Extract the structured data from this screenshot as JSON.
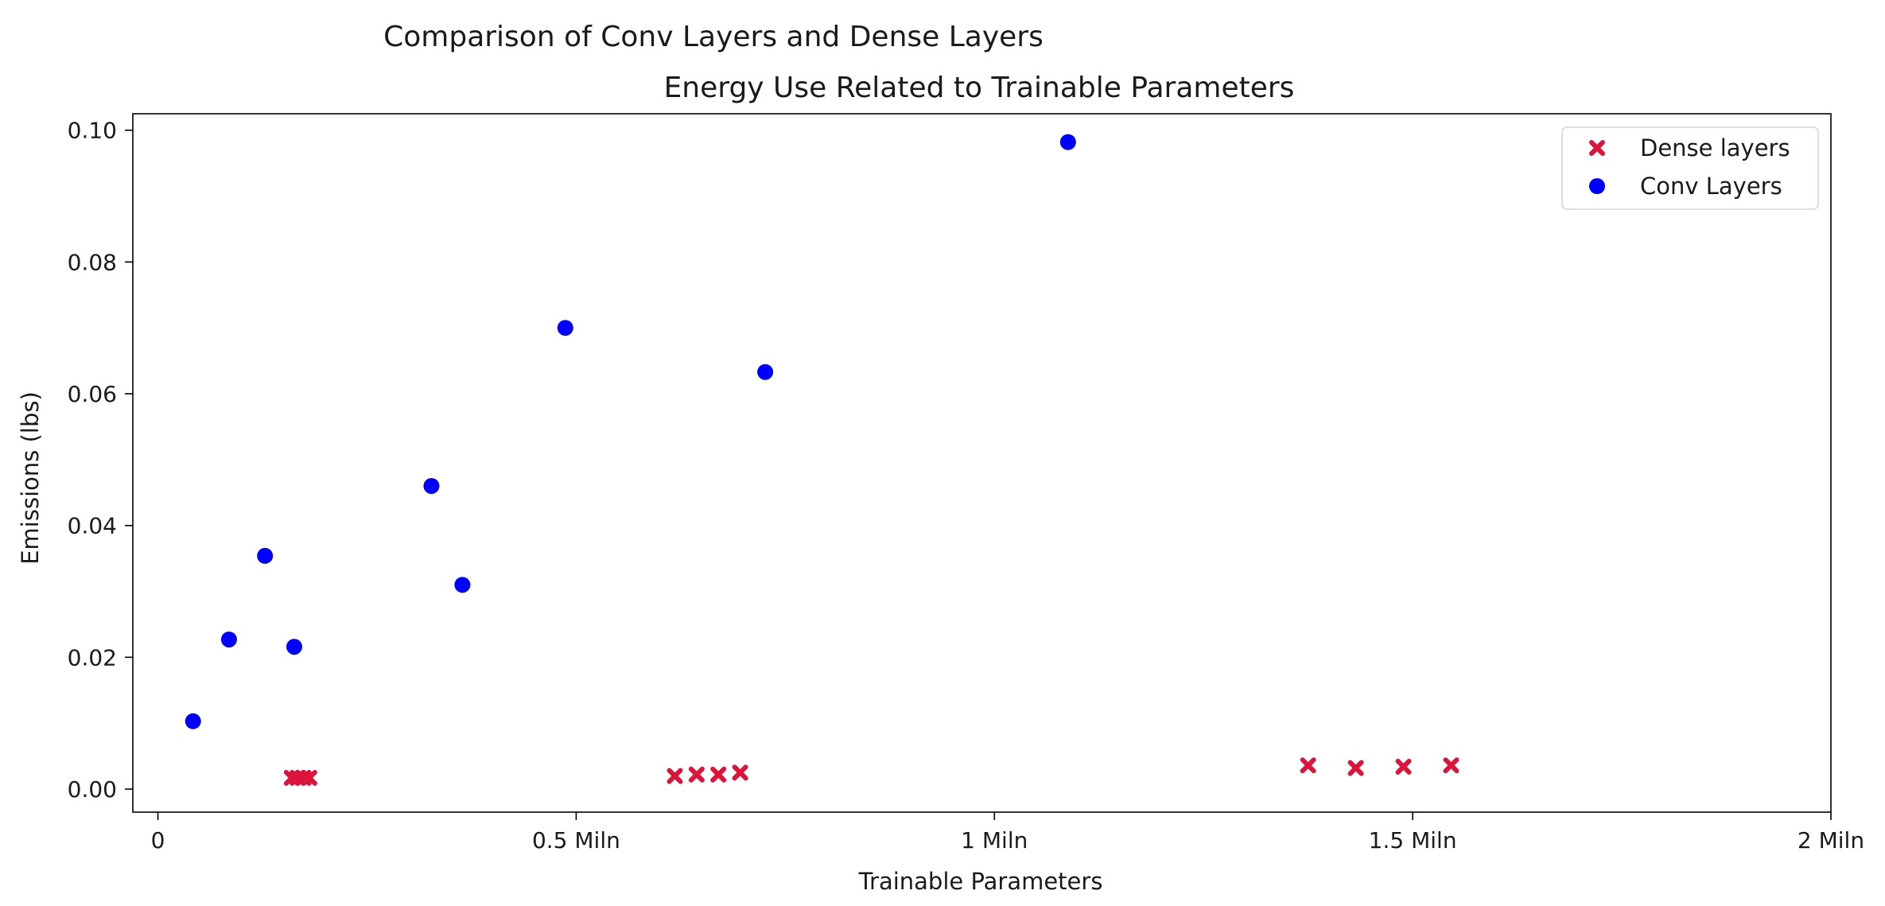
{
  "chart_data": {
    "type": "scatter",
    "title": "Comparison of Conv Layers and Dense Layers",
    "subtitle": "Energy Use Related to Trainable Parameters",
    "xlabel": "Trainable Parameters",
    "ylabel": "Emissions (lbs)",
    "xlim": [
      -30000,
      2000000
    ],
    "ylim": [
      -0.0035,
      0.1025
    ],
    "x_ticks": [
      {
        "value": 0,
        "label": "0"
      },
      {
        "value": 500000,
        "label": "0.5 Miln"
      },
      {
        "value": 1000000,
        "label": "1 Miln"
      },
      {
        "value": 1500000,
        "label": "1.5 Miln"
      },
      {
        "value": 2000000,
        "label": "2 Miln"
      }
    ],
    "y_ticks": [
      {
        "value": 0.0,
        "label": "0.00"
      },
      {
        "value": 0.02,
        "label": "0.02"
      },
      {
        "value": 0.04,
        "label": "0.04"
      },
      {
        "value": 0.06,
        "label": "0.06"
      },
      {
        "value": 0.08,
        "label": "0.08"
      },
      {
        "value": 0.1,
        "label": "0.10"
      }
    ],
    "grid": false,
    "legend_position": "top-right",
    "series": [
      {
        "name": "Dense layers",
        "marker": "x",
        "color": "#dc143c",
        "points": [
          {
            "x": 160000,
            "y": 0.0017
          },
          {
            "x": 167000,
            "y": 0.0017
          },
          {
            "x": 174000,
            "y": 0.0017
          },
          {
            "x": 181000,
            "y": 0.0017
          },
          {
            "x": 618000,
            "y": 0.002
          },
          {
            "x": 644000,
            "y": 0.0022
          },
          {
            "x": 670000,
            "y": 0.0022
          },
          {
            "x": 696000,
            "y": 0.0025
          },
          {
            "x": 1375000,
            "y": 0.0036
          },
          {
            "x": 1432000,
            "y": 0.0032
          },
          {
            "x": 1489000,
            "y": 0.0034
          },
          {
            "x": 1546000,
            "y": 0.0036
          }
        ]
      },
      {
        "name": "Conv Layers",
        "marker": "o",
        "color": "#0000ff",
        "points": [
          {
            "x": 42000,
            "y": 0.0103
          },
          {
            "x": 85000,
            "y": 0.0227
          },
          {
            "x": 128000,
            "y": 0.0354
          },
          {
            "x": 163000,
            "y": 0.0216
          },
          {
            "x": 327000,
            "y": 0.046
          },
          {
            "x": 364000,
            "y": 0.031
          },
          {
            "x": 487000,
            "y": 0.07
          },
          {
            "x": 726000,
            "y": 0.0633
          },
          {
            "x": 1088000,
            "y": 0.0982
          }
        ]
      }
    ]
  }
}
